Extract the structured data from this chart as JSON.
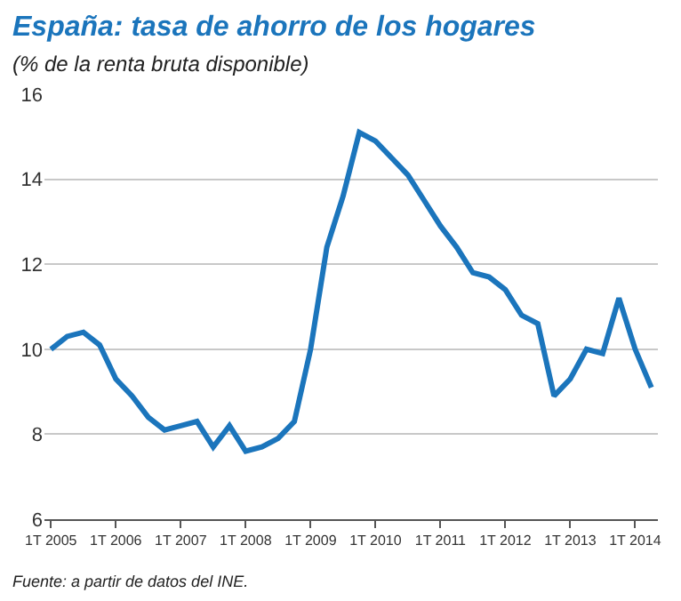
{
  "chart_data": {
    "type": "line",
    "title": "España: tasa de ahorro de los hogares",
    "subtitle": "(% de la renta bruta disponible)",
    "annotations": [
      "Fuente: a partir de datos del INE."
    ],
    "categories": [
      "1T 2005",
      null,
      null,
      null,
      "1T 2006",
      null,
      null,
      null,
      "1T 2007",
      null,
      null,
      null,
      "1T 2008",
      null,
      null,
      null,
      "1T 2009",
      null,
      null,
      null,
      "1T 2010",
      null,
      null,
      null,
      "1T 2011",
      null,
      null,
      null,
      "1T 2012",
      null,
      null,
      null,
      "1T 2013",
      null,
      null,
      null,
      "1T 2014",
      null
    ],
    "series": [
      {
        "color": "#1b75bc",
        "values": [
          10.0,
          10.3,
          10.4,
          10.1,
          9.3,
          8.9,
          8.4,
          8.1,
          8.2,
          8.3,
          7.7,
          8.2,
          7.6,
          7.7,
          7.9,
          8.3,
          10.0,
          12.4,
          13.6,
          15.1,
          14.9,
          14.5,
          14.1,
          13.5,
          12.9,
          12.4,
          11.8,
          11.7,
          11.4,
          10.8,
          10.6,
          8.9,
          9.3,
          10.0,
          9.9,
          11.2,
          10.0,
          9.1
        ]
      }
    ],
    "ylim": [
      6,
      16
    ],
    "yticks": [
      6,
      8,
      10,
      12,
      14,
      16
    ],
    "grid": "y",
    "marker": "none",
    "line_style": "solid"
  }
}
